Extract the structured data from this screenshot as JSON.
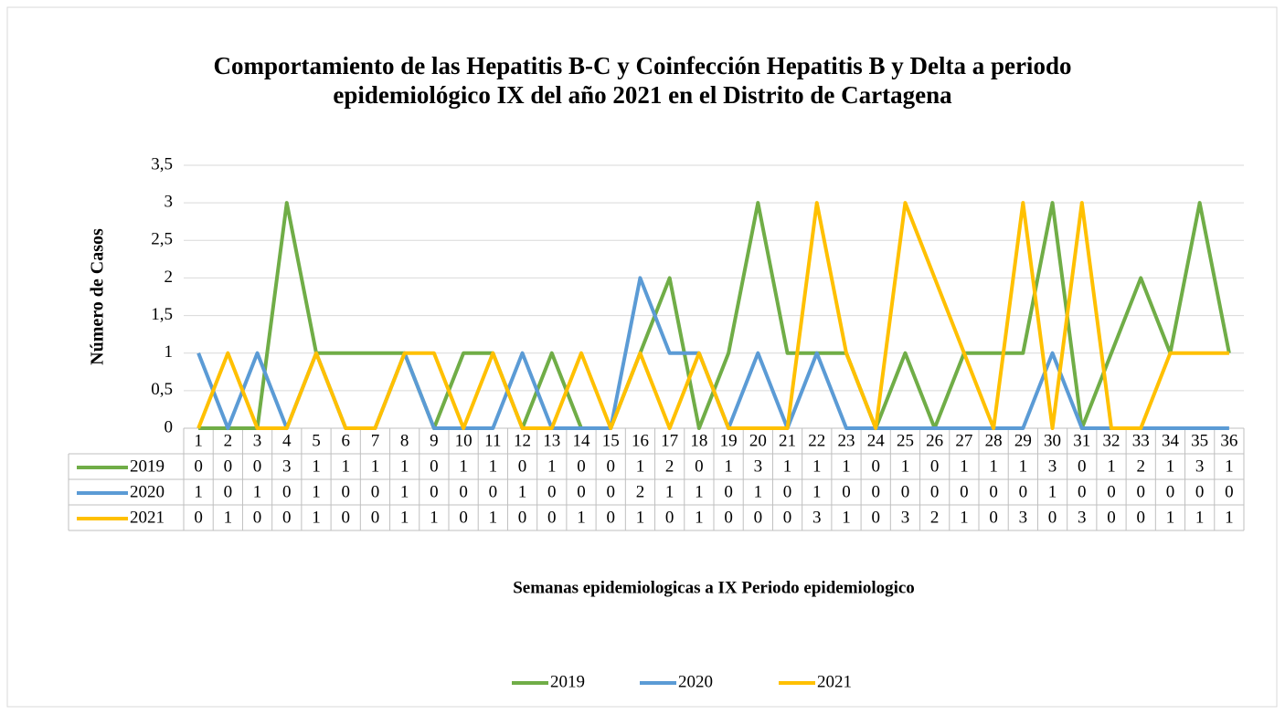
{
  "chart_data": {
    "type": "line",
    "title": "Comportamiento de las Hepatitis B-C y Coinfección Hepatitis B y Delta a periodo epidemiológico IX del año 2021 en el Distrito de Cartagena",
    "y_label": "Número de Casos",
    "x_label": "Semanas epidemiologicas a IX Periodo epidemiologico",
    "categories": [
      "1",
      "2",
      "3",
      "4",
      "5",
      "6",
      "7",
      "8",
      "9",
      "10",
      "11",
      "12",
      "13",
      "14",
      "15",
      "16",
      "17",
      "18",
      "19",
      "20",
      "21",
      "22",
      "23",
      "24",
      "25",
      "26",
      "27",
      "28",
      "29",
      "30",
      "31",
      "32",
      "33",
      "34",
      "35",
      "36"
    ],
    "series": [
      {
        "name": "2019",
        "color": "#70ad47",
        "values": [
          0,
          0,
          0,
          3,
          1,
          1,
          1,
          1,
          0,
          1,
          1,
          0,
          1,
          0,
          0,
          1,
          2,
          0,
          1,
          3,
          1,
          1,
          1,
          0,
          1,
          0,
          1,
          1,
          1,
          3,
          0,
          1,
          2,
          1,
          3,
          1
        ]
      },
      {
        "name": "2020",
        "color": "#5b9bd5",
        "values": [
          1,
          0,
          1,
          0,
          1,
          0,
          0,
          1,
          0,
          0,
          0,
          1,
          0,
          0,
          0,
          2,
          1,
          1,
          0,
          1,
          0,
          1,
          0,
          0,
          0,
          0,
          0,
          0,
          0,
          1,
          0,
          0,
          0,
          0,
          0,
          0
        ]
      },
      {
        "name": "2021",
        "color": "#ffc000",
        "values": [
          0,
          1,
          0,
          0,
          1,
          0,
          0,
          1,
          1,
          0,
          1,
          0,
          0,
          1,
          0,
          1,
          0,
          1,
          0,
          0,
          0,
          3,
          1,
          0,
          3,
          2,
          1,
          0,
          3,
          0,
          3,
          0,
          0,
          1,
          1,
          1
        ]
      }
    ],
    "ylim": [
      0,
      3.5
    ],
    "yticks": [
      0,
      {
        "value": 0.5,
        "label": "0,5"
      },
      1,
      {
        "value": 1.5,
        "label": "1,5"
      },
      2,
      {
        "value": 2.5,
        "label": "2,5"
      },
      3,
      {
        "value": 3.5,
        "label": "3,5"
      }
    ],
    "grid": true
  }
}
